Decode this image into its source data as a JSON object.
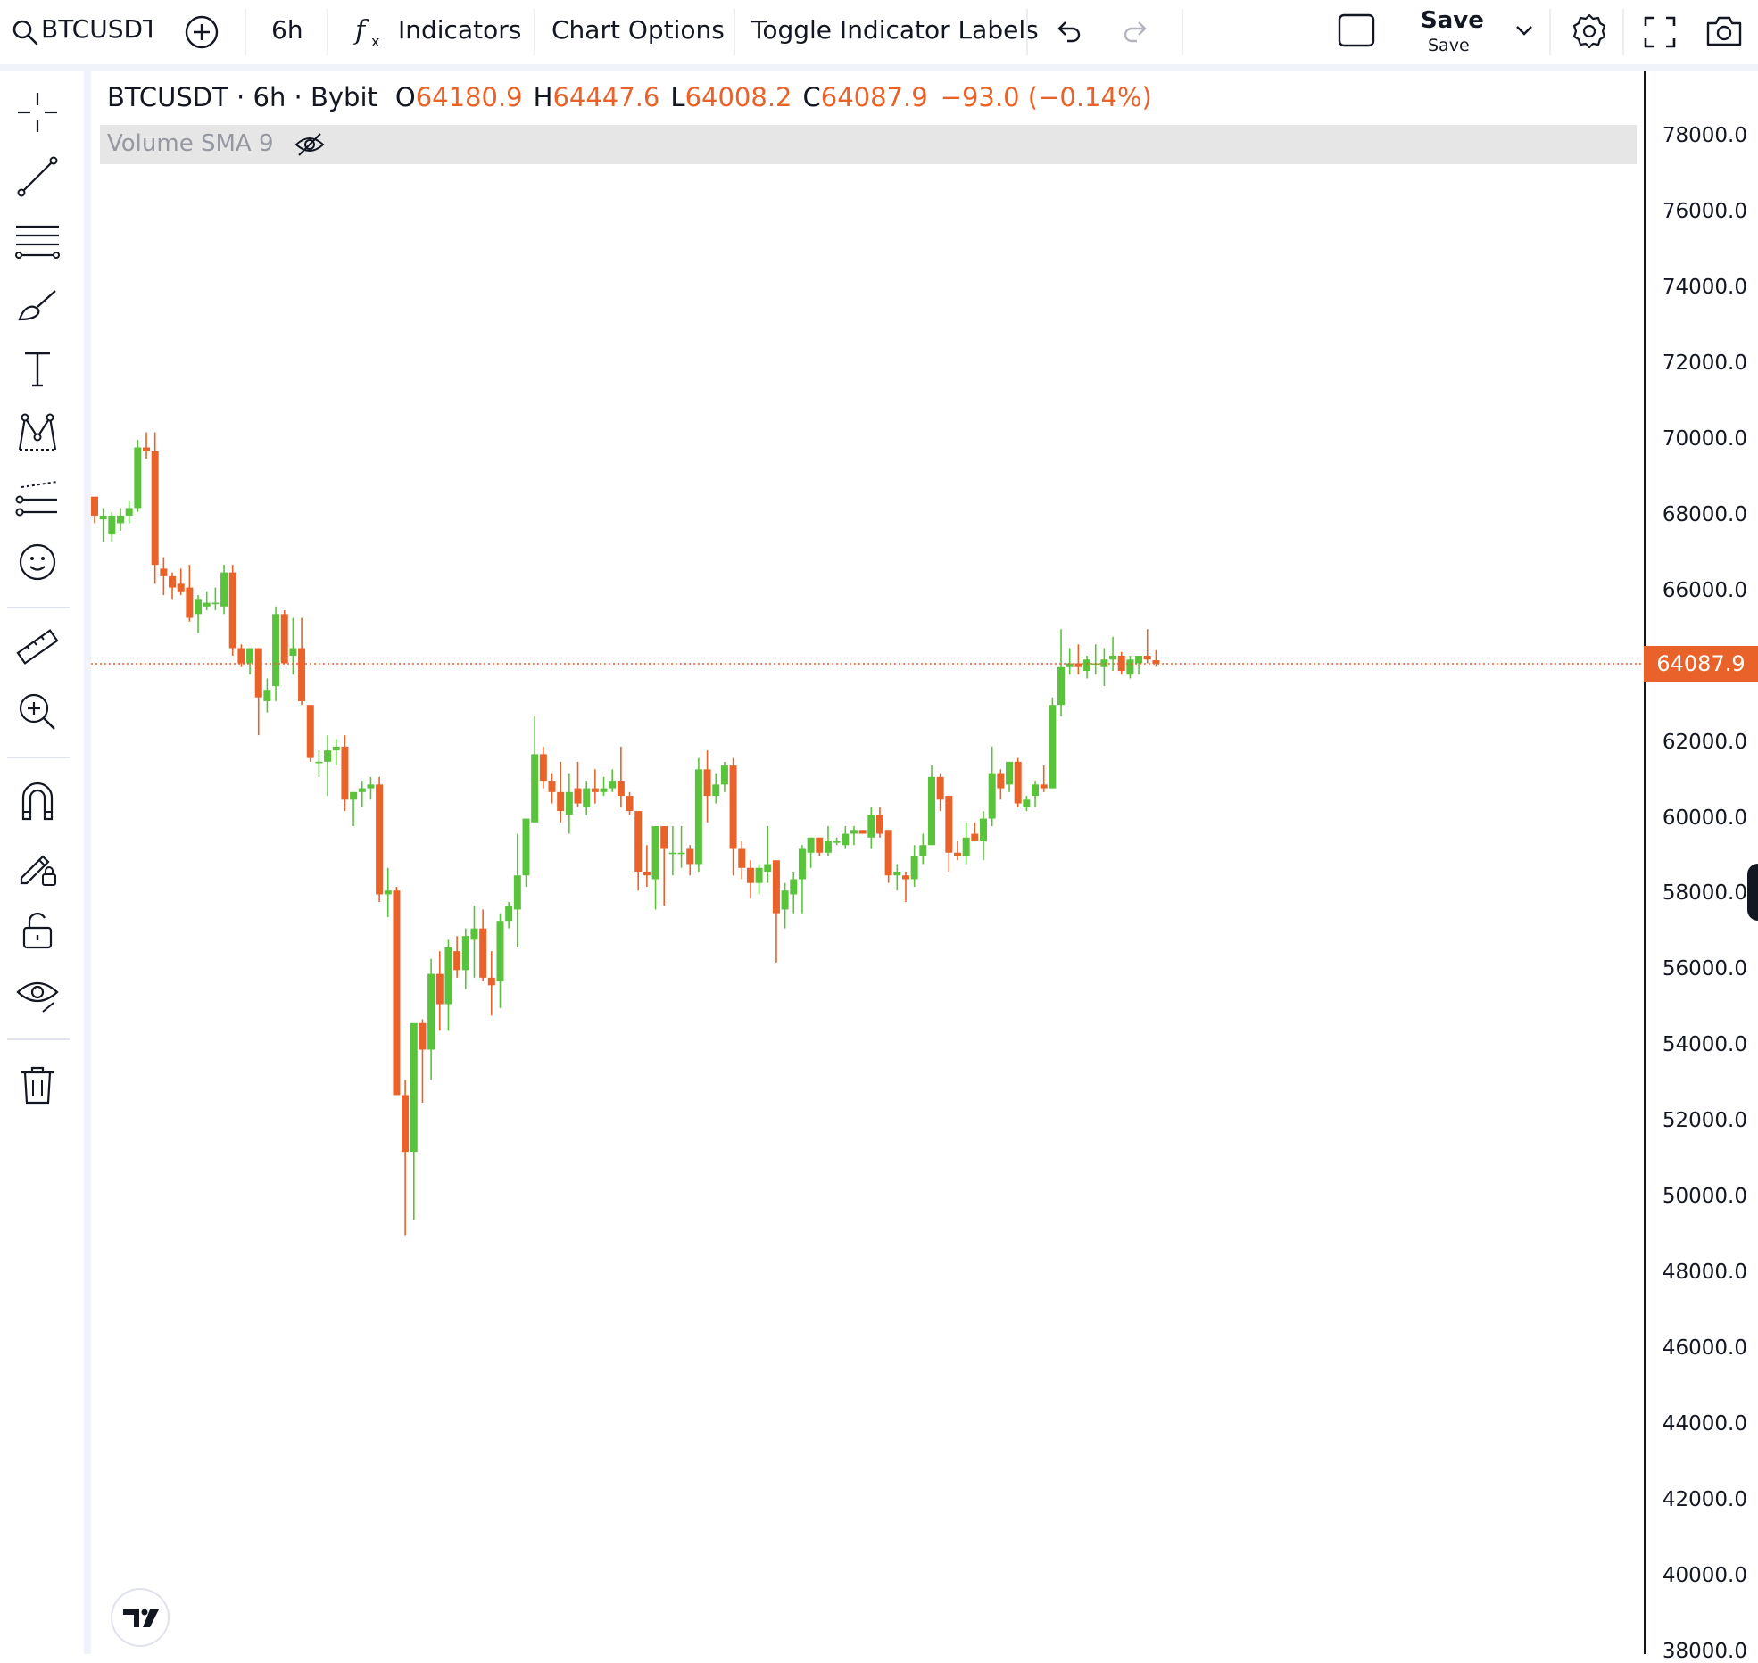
{
  "topbar": {
    "symbol": "BTCUSDT",
    "interval": "6h",
    "indicators_label": "Indicators",
    "chart_options_label": "Chart Options",
    "toggle_labels_label": "Toggle Indicator Labels",
    "save_label": "Save",
    "save_sub_label": "Save",
    "icons": [
      "search-icon",
      "add-symbol-icon",
      "fx-icon",
      "undo-icon",
      "redo-icon",
      "layout-icon",
      "chevron-down-icon",
      "gear-icon",
      "fullscreen-icon",
      "camera-icon"
    ]
  },
  "left_toolbar": {
    "icons": [
      "crosshair-icon",
      "trend-line-icon",
      "fib-lines-icon",
      "brush-icon",
      "text-icon",
      "pattern-icon",
      "forecast-icon",
      "emoji-icon",
      "ruler-icon",
      "zoom-in-icon",
      "magnet-icon",
      "lock-drawing-icon",
      "unlock-icon",
      "eye-icon",
      "trash-icon"
    ]
  },
  "legend": {
    "title": "BTCUSDT · 6h · Bybit",
    "o_key": "O",
    "o_val": "64180.9",
    "h_key": "H",
    "h_val": "64447.6",
    "l_key": "L",
    "l_val": "64008.2",
    "c_key": "C",
    "c_val": "64087.9",
    "change": "−93.0 (−0.14%)"
  },
  "volume_indicator": {
    "label": "Volume SMA 9"
  },
  "last_price": "64087.9",
  "colors": {
    "up": "#5ac33c",
    "down": "#e8622a",
    "axis": "#131722",
    "grid_bg": "#ffffff"
  },
  "chart_data": {
    "type": "candlestick",
    "symbol": "BTCUSDT",
    "interval": "6h",
    "exchange": "Bybit",
    "y_axis_ticks": [
      "78000.0",
      "76000.0",
      "74000.0",
      "72000.0",
      "70000.0",
      "68000.0",
      "66000.0",
      "62000.0",
      "60000.0",
      "58000.0",
      "56000.0",
      "54000.0",
      "52000.0",
      "50000.0",
      "48000.0",
      "46000.0",
      "44000.0",
      "42000.0",
      "40000.0",
      "38000.0"
    ],
    "ylim": [
      37800,
      80200
    ],
    "last_close": 64087.9,
    "candles": [
      {
        "o": 68500,
        "h": 68500,
        "l": 67800,
        "c": 68000
      },
      {
        "o": 67900,
        "h": 68200,
        "l": 67300,
        "c": 68000
      },
      {
        "o": 67500,
        "h": 68100,
        "l": 67300,
        "c": 68000
      },
      {
        "o": 67800,
        "h": 68200,
        "l": 67600,
        "c": 68000
      },
      {
        "o": 68000,
        "h": 68400,
        "l": 67800,
        "c": 68200
      },
      {
        "o": 68200,
        "h": 70000,
        "l": 68100,
        "c": 69800
      },
      {
        "o": 69800,
        "h": 70200,
        "l": 69500,
        "c": 69700
      },
      {
        "o": 69700,
        "h": 70200,
        "l": 66200,
        "c": 66700
      },
      {
        "o": 66600,
        "h": 66900,
        "l": 65900,
        "c": 66400
      },
      {
        "o": 66400,
        "h": 66500,
        "l": 65800,
        "c": 66100
      },
      {
        "o": 66200,
        "h": 66600,
        "l": 65900,
        "c": 66000
      },
      {
        "o": 66100,
        "h": 66700,
        "l": 65200,
        "c": 65300
      },
      {
        "o": 65400,
        "h": 65900,
        "l": 64900,
        "c": 65800
      },
      {
        "o": 65600,
        "h": 66000,
        "l": 65500,
        "c": 65700
      },
      {
        "o": 65700,
        "h": 66100,
        "l": 65500,
        "c": 65700
      },
      {
        "o": 65600,
        "h": 66700,
        "l": 65400,
        "c": 66500
      },
      {
        "o": 66500,
        "h": 66700,
        "l": 64300,
        "c": 64500
      },
      {
        "o": 64500,
        "h": 64600,
        "l": 64000,
        "c": 64100
      },
      {
        "o": 64100,
        "h": 64500,
        "l": 63800,
        "c": 64500
      },
      {
        "o": 64500,
        "h": 64500,
        "l": 62200,
        "c": 63200
      },
      {
        "o": 63100,
        "h": 63700,
        "l": 62800,
        "c": 63400
      },
      {
        "o": 63500,
        "h": 65600,
        "l": 63100,
        "c": 65400
      },
      {
        "o": 65400,
        "h": 65500,
        "l": 64100,
        "c": 64100
      },
      {
        "o": 64300,
        "h": 65300,
        "l": 63800,
        "c": 64500
      },
      {
        "o": 64500,
        "h": 65300,
        "l": 63000,
        "c": 63100
      },
      {
        "o": 63000,
        "h": 63000,
        "l": 61500,
        "c": 61600
      },
      {
        "o": 61500,
        "h": 61800,
        "l": 61100,
        "c": 61500
      },
      {
        "o": 61500,
        "h": 62200,
        "l": 60600,
        "c": 61800
      },
      {
        "o": 61800,
        "h": 62100,
        "l": 61400,
        "c": 61900
      },
      {
        "o": 61900,
        "h": 62200,
        "l": 60200,
        "c": 60500
      },
      {
        "o": 60500,
        "h": 60700,
        "l": 59800,
        "c": 60700
      },
      {
        "o": 60700,
        "h": 61000,
        "l": 60300,
        "c": 60800
      },
      {
        "o": 60800,
        "h": 61100,
        "l": 60500,
        "c": 60900
      },
      {
        "o": 60900,
        "h": 61100,
        "l": 57800,
        "c": 58000
      },
      {
        "o": 58000,
        "h": 58700,
        "l": 57400,
        "c": 58100
      },
      {
        "o": 58100,
        "h": 58200,
        "l": 52800,
        "c": 52700
      },
      {
        "o": 52700,
        "h": 53100,
        "l": 49000,
        "c": 51200
      },
      {
        "o": 51200,
        "h": 54500,
        "l": 49400,
        "c": 54600
      },
      {
        "o": 54600,
        "h": 54700,
        "l": 52500,
        "c": 53900
      },
      {
        "o": 53900,
        "h": 56300,
        "l": 53100,
        "c": 55900
      },
      {
        "o": 55900,
        "h": 56500,
        "l": 54400,
        "c": 55100
      },
      {
        "o": 55100,
        "h": 56800,
        "l": 54400,
        "c": 56600
      },
      {
        "o": 56500,
        "h": 56900,
        "l": 55800,
        "c": 56000
      },
      {
        "o": 56000,
        "h": 57100,
        "l": 55500,
        "c": 56900
      },
      {
        "o": 56800,
        "h": 57700,
        "l": 55800,
        "c": 57100
      },
      {
        "o": 57100,
        "h": 57600,
        "l": 55700,
        "c": 55800
      },
      {
        "o": 55800,
        "h": 56500,
        "l": 54800,
        "c": 55600
      },
      {
        "o": 55700,
        "h": 57500,
        "l": 55000,
        "c": 57300
      },
      {
        "o": 57300,
        "h": 57800,
        "l": 57100,
        "c": 57700
      },
      {
        "o": 57600,
        "h": 59600,
        "l": 56600,
        "c": 58500
      },
      {
        "o": 58500,
        "h": 60000,
        "l": 58200,
        "c": 60000
      },
      {
        "o": 59900,
        "h": 62700,
        "l": 59900,
        "c": 61700
      },
      {
        "o": 61700,
        "h": 61900,
        "l": 60800,
        "c": 61000
      },
      {
        "o": 61000,
        "h": 61200,
        "l": 60400,
        "c": 60700
      },
      {
        "o": 60700,
        "h": 61500,
        "l": 59900,
        "c": 60200
      },
      {
        "o": 60100,
        "h": 61200,
        "l": 59600,
        "c": 60700
      },
      {
        "o": 60800,
        "h": 61500,
        "l": 60300,
        "c": 60400
      },
      {
        "o": 60300,
        "h": 61000,
        "l": 60100,
        "c": 60800
      },
      {
        "o": 60800,
        "h": 61300,
        "l": 60400,
        "c": 60700
      },
      {
        "o": 60700,
        "h": 61100,
        "l": 60600,
        "c": 60800
      },
      {
        "o": 60800,
        "h": 61300,
        "l": 60700,
        "c": 61000
      },
      {
        "o": 61000,
        "h": 61900,
        "l": 60300,
        "c": 60600
      },
      {
        "o": 60600,
        "h": 60700,
        "l": 60100,
        "c": 60200
      },
      {
        "o": 60200,
        "h": 60200,
        "l": 58100,
        "c": 58600
      },
      {
        "o": 58600,
        "h": 59300,
        "l": 58200,
        "c": 58500
      },
      {
        "o": 58400,
        "h": 59800,
        "l": 57600,
        "c": 59800
      },
      {
        "o": 59800,
        "h": 59800,
        "l": 57700,
        "c": 59200
      },
      {
        "o": 59100,
        "h": 59800,
        "l": 58500,
        "c": 59100
      },
      {
        "o": 59100,
        "h": 59800,
        "l": 58700,
        "c": 59100
      },
      {
        "o": 59200,
        "h": 59300,
        "l": 58500,
        "c": 58800
      },
      {
        "o": 58800,
        "h": 61600,
        "l": 58600,
        "c": 61300
      },
      {
        "o": 61300,
        "h": 61800,
        "l": 59900,
        "c": 60600
      },
      {
        "o": 60600,
        "h": 61200,
        "l": 60400,
        "c": 60900
      },
      {
        "o": 60900,
        "h": 61500,
        "l": 60700,
        "c": 61400
      },
      {
        "o": 61400,
        "h": 61600,
        "l": 58500,
        "c": 59200
      },
      {
        "o": 59200,
        "h": 59400,
        "l": 58400,
        "c": 58700
      },
      {
        "o": 58700,
        "h": 58900,
        "l": 57900,
        "c": 58300
      },
      {
        "o": 58300,
        "h": 58800,
        "l": 58000,
        "c": 58700
      },
      {
        "o": 58600,
        "h": 59800,
        "l": 58300,
        "c": 58800
      },
      {
        "o": 58900,
        "h": 58900,
        "l": 56200,
        "c": 57500
      },
      {
        "o": 57600,
        "h": 58300,
        "l": 57100,
        "c": 58100
      },
      {
        "o": 58000,
        "h": 58600,
        "l": 57500,
        "c": 58400
      },
      {
        "o": 58400,
        "h": 59300,
        "l": 57500,
        "c": 59200
      },
      {
        "o": 59100,
        "h": 59500,
        "l": 58700,
        "c": 59500
      },
      {
        "o": 59500,
        "h": 59500,
        "l": 59000,
        "c": 59100
      },
      {
        "o": 59100,
        "h": 59800,
        "l": 59000,
        "c": 59400
      },
      {
        "o": 59400,
        "h": 59500,
        "l": 59300,
        "c": 59400
      },
      {
        "o": 59300,
        "h": 59800,
        "l": 59200,
        "c": 59600
      },
      {
        "o": 59600,
        "h": 59800,
        "l": 59300,
        "c": 59700
      },
      {
        "o": 59700,
        "h": 59700,
        "l": 59600,
        "c": 59600
      },
      {
        "o": 59500,
        "h": 60300,
        "l": 59200,
        "c": 60100
      },
      {
        "o": 60100,
        "h": 60300,
        "l": 59500,
        "c": 59600
      },
      {
        "o": 59700,
        "h": 59700,
        "l": 58300,
        "c": 58500
      },
      {
        "o": 58500,
        "h": 58800,
        "l": 58100,
        "c": 58600
      },
      {
        "o": 58500,
        "h": 58600,
        "l": 57800,
        "c": 58400
      },
      {
        "o": 58400,
        "h": 59300,
        "l": 58200,
        "c": 59000
      },
      {
        "o": 59000,
        "h": 59600,
        "l": 58800,
        "c": 59300
      },
      {
        "o": 59300,
        "h": 61400,
        "l": 59300,
        "c": 61100
      },
      {
        "o": 61100,
        "h": 61200,
        "l": 60200,
        "c": 60500
      },
      {
        "o": 60600,
        "h": 60600,
        "l": 58600,
        "c": 59100
      },
      {
        "o": 59100,
        "h": 59400,
        "l": 58900,
        "c": 59000
      },
      {
        "o": 59000,
        "h": 59900,
        "l": 58800,
        "c": 59500
      },
      {
        "o": 59600,
        "h": 59900,
        "l": 59400,
        "c": 59400
      },
      {
        "o": 59400,
        "h": 60200,
        "l": 58900,
        "c": 60000
      },
      {
        "o": 60000,
        "h": 61900,
        "l": 59800,
        "c": 61200
      },
      {
        "o": 61200,
        "h": 61300,
        "l": 60500,
        "c": 60800
      },
      {
        "o": 60900,
        "h": 61500,
        "l": 60700,
        "c": 61500
      },
      {
        "o": 61500,
        "h": 61600,
        "l": 60300,
        "c": 60400
      },
      {
        "o": 60300,
        "h": 60600,
        "l": 60200,
        "c": 60500
      },
      {
        "o": 60600,
        "h": 61000,
        "l": 60300,
        "c": 60900
      },
      {
        "o": 60900,
        "h": 61400,
        "l": 60700,
        "c": 60800
      },
      {
        "o": 60800,
        "h": 63200,
        "l": 60800,
        "c": 63000
      },
      {
        "o": 63000,
        "h": 65000,
        "l": 62700,
        "c": 64000
      },
      {
        "o": 64000,
        "h": 64500,
        "l": 63800,
        "c": 64100
      },
      {
        "o": 64100,
        "h": 64600,
        "l": 63800,
        "c": 64000
      },
      {
        "o": 63900,
        "h": 64300,
        "l": 63700,
        "c": 64200
      },
      {
        "o": 64100,
        "h": 64600,
        "l": 63800,
        "c": 64100
      },
      {
        "o": 64000,
        "h": 64500,
        "l": 63500,
        "c": 64200
      },
      {
        "o": 64200,
        "h": 64800,
        "l": 63900,
        "c": 64300
      },
      {
        "o": 64300,
        "h": 64400,
        "l": 63800,
        "c": 63900
      },
      {
        "o": 63800,
        "h": 64300,
        "l": 63700,
        "c": 64200
      },
      {
        "o": 64100,
        "h": 64300,
        "l": 63800,
        "c": 64300
      },
      {
        "o": 64300,
        "h": 65000,
        "l": 64100,
        "c": 64200
      },
      {
        "o": 64180.9,
        "h": 64447.6,
        "l": 64008.2,
        "c": 64087.9
      }
    ]
  }
}
